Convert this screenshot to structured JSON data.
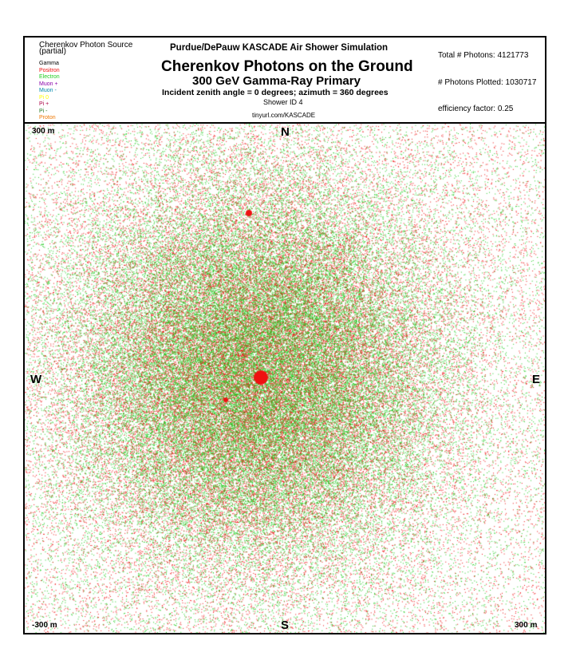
{
  "legend": {
    "title_line1": "Cherenkov Photon Source",
    "title_line2": "(partial)",
    "items": [
      {
        "label": "Gamma",
        "color": "#000000"
      },
      {
        "label": "Positron",
        "color": "#ee1111"
      },
      {
        "label": "Electron",
        "color": "#22cc22"
      },
      {
        "label": "Muon +",
        "color": "#8800aa"
      },
      {
        "label": "Muon -",
        "color": "#0088aa"
      },
      {
        "label": "Pi 0",
        "color": "#ffff00"
      },
      {
        "label": "Pi +",
        "color": "#aa0044"
      },
      {
        "label": "Pi -",
        "color": "#227722"
      },
      {
        "label": "Proton",
        "color": "#ee7700"
      }
    ]
  },
  "header": {
    "top_title": "Purdue/DePauw KASCADE Air Shower Simulation",
    "main_title": "Cherenkov Photons on the Ground",
    "subtitle": "300 GeV Gamma-Ray Primary",
    "angle_line": "Incident zenith angle =  0 degrees;  azimuth =  360 degrees",
    "shower_id": "Shower ID 4",
    "url": "tinyurl.com/KASCADE"
  },
  "stats": {
    "total_photons": "Total # Photons: 4121773",
    "photons_plotted": "# Photons Plotted: 1030717",
    "efficiency": "efficiency factor: 0.25"
  },
  "plot": {
    "north": "N",
    "south": "S",
    "west": "W",
    "east": "E",
    "corner_top_left": "300 m",
    "corner_bottom_left": "-300 m",
    "corner_bottom_right": "300 m",
    "colors": {
      "positron": "#ee1111",
      "electron": "#22cc22"
    }
  }
}
